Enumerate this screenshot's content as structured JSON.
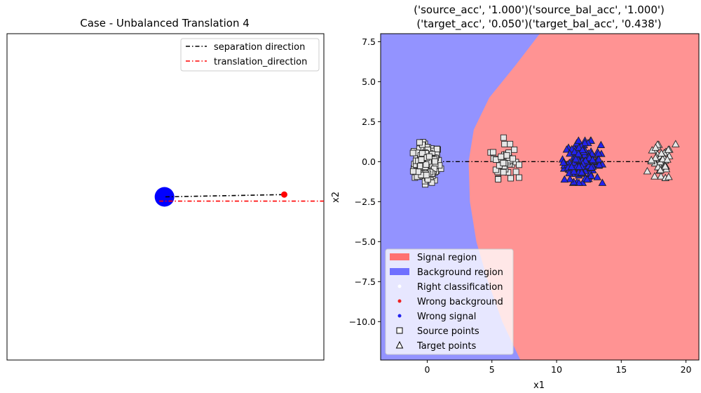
{
  "chart_data": [
    {
      "type": "line",
      "title": "Case - Unbalanced Translation 4",
      "xlabel": "",
      "ylabel": "",
      "xlim": [
        0,
        1
      ],
      "ylim": [
        0,
        1
      ],
      "axes_ticks": false,
      "legend": {
        "placement": "upper-right",
        "entries": [
          {
            "name": "separation direction",
            "color": "#000000",
            "style": "dashdot"
          },
          {
            "name": "translation_direction",
            "color": "#ff0000",
            "style": "dashdot"
          }
        ]
      },
      "series": [
        {
          "name": "separation direction",
          "color": "#000000",
          "style": "dashdot",
          "x": [
            0.5,
            0.875
          ],
          "y": [
            0.5,
            0.507
          ]
        },
        {
          "name": "translation_direction",
          "color": "#ff0000",
          "style": "dashdot",
          "x": [
            0.48,
            1.0
          ],
          "y": [
            0.487,
            0.487
          ]
        }
      ],
      "markers": [
        {
          "label": "origin",
          "x": 0.497,
          "y": 0.5,
          "color": "#0000ff",
          "size": "large"
        },
        {
          "label": "separation tip",
          "x": 0.875,
          "y": 0.507,
          "color": "#ff0000",
          "size": "small"
        }
      ]
    },
    {
      "type": "scatter",
      "title": "('source_acc', '1.000')('source_bal_acc', '1.000')\n('target_acc', '0.050')('target_bal_acc', '0.438')",
      "xlabel": "x1",
      "ylabel": "x2",
      "xlim": [
        -3.6,
        21.0
      ],
      "ylim": [
        -12.4,
        8.0
      ],
      "xticks": [
        0,
        5,
        10,
        15,
        20
      ],
      "yticks": [
        -10.0,
        -7.5,
        -5.0,
        -2.5,
        0.0,
        2.5,
        5.0,
        7.5
      ],
      "ytick_labels": [
        "−10.0",
        "−7.5",
        "−5.0",
        "−2.5",
        "0.0",
        "2.5",
        "5.0",
        "7.5"
      ],
      "regions": {
        "background_color": "#9393ff",
        "signal_color": "#ff9393",
        "boundary": [
          [
            8.7,
            8.0
          ],
          [
            6.8,
            6.0
          ],
          [
            4.8,
            4.0
          ],
          [
            3.6,
            2.0
          ],
          [
            3.2,
            0.0
          ],
          [
            3.3,
            -2.5
          ],
          [
            3.8,
            -5.0
          ],
          [
            4.7,
            -7.5
          ],
          [
            5.8,
            -10.0
          ],
          [
            7.2,
            -12.4
          ]
        ]
      },
      "decision_line": {
        "x": [
          0,
          18
        ],
        "y": [
          0,
          0
        ],
        "color": "#000000",
        "style": "dashdot"
      },
      "clusters": [
        {
          "name": "source background",
          "marker": "square",
          "fill": "#e6e6e6",
          "center": [
            0,
            -0.1
          ],
          "sd": [
            0.5,
            0.6
          ],
          "count": 160
        },
        {
          "name": "source signal",
          "marker": "square",
          "fill": "#e6e6e6",
          "center": [
            6.0,
            0.0
          ],
          "sd": [
            0.5,
            0.5
          ],
          "count": 45
        },
        {
          "name": "target signal (wrong)",
          "marker": "triangle",
          "fill": "#2222ee",
          "center": [
            12.0,
            0.0
          ],
          "sd": [
            0.7,
            0.6
          ],
          "count": 170
        },
        {
          "name": "target background",
          "marker": "triangle",
          "fill": "#e6e6e6",
          "center": [
            18.0,
            -0.1
          ],
          "sd": [
            0.45,
            0.55
          ],
          "count": 45
        }
      ],
      "legend": {
        "placement": "lower-left",
        "entries": [
          {
            "name": "Signal region",
            "kind": "patch",
            "color": "#ff7070"
          },
          {
            "name": "Background region",
            "kind": "patch",
            "color": "#7070ff"
          },
          {
            "name": "Right classification",
            "kind": "dot",
            "color": "#ffffff"
          },
          {
            "name": "Wrong background",
            "kind": "dot",
            "color": "#ee2222"
          },
          {
            "name": "Wrong signal",
            "kind": "dot",
            "color": "#2222ee"
          },
          {
            "name": "Source points",
            "kind": "square",
            "color": "#ffffff"
          },
          {
            "name": "Target points",
            "kind": "triangle",
            "color": "#ffffff"
          }
        ]
      }
    }
  ]
}
